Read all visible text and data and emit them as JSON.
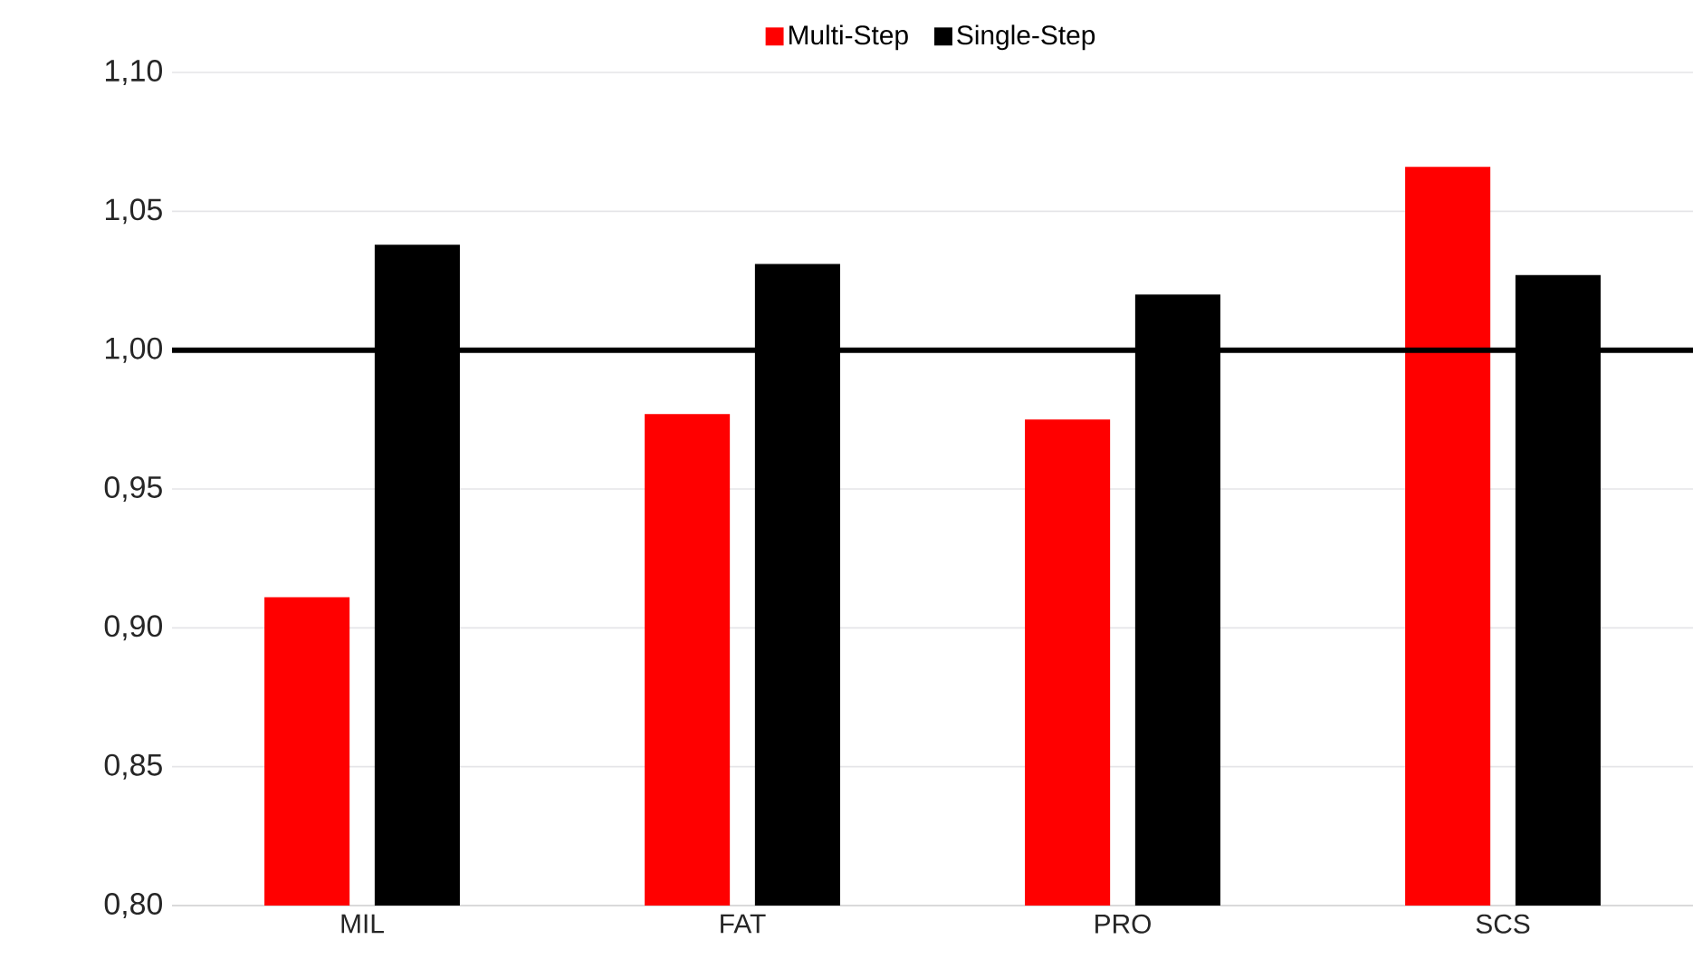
{
  "chart_data": {
    "type": "bar",
    "categories": [
      "MIL",
      "FAT",
      "PRO",
      "SCS"
    ],
    "series": [
      {
        "name": "Multi-Step",
        "color": "#ff0000",
        "values": [
          0.911,
          0.977,
          0.975,
          1.066
        ]
      },
      {
        "name": "Single-Step",
        "color": "#000000",
        "values": [
          1.038,
          1.031,
          1.02,
          1.027
        ]
      }
    ],
    "ylim": [
      0.8,
      1.1
    ],
    "yticks": [
      {
        "value": 0.8,
        "label": "0,80"
      },
      {
        "value": 0.85,
        "label": "0,85"
      },
      {
        "value": 0.9,
        "label": "0,90"
      },
      {
        "value": 0.95,
        "label": "0,95"
      },
      {
        "value": 1.0,
        "label": "1,00"
      },
      {
        "value": 1.05,
        "label": "1,05"
      },
      {
        "value": 1.1,
        "label": "1,10"
      }
    ],
    "ref_lines": [
      {
        "axis": "y",
        "value": 1.0,
        "color": "#000000"
      }
    ],
    "grid": "y",
    "legend": "top"
  }
}
